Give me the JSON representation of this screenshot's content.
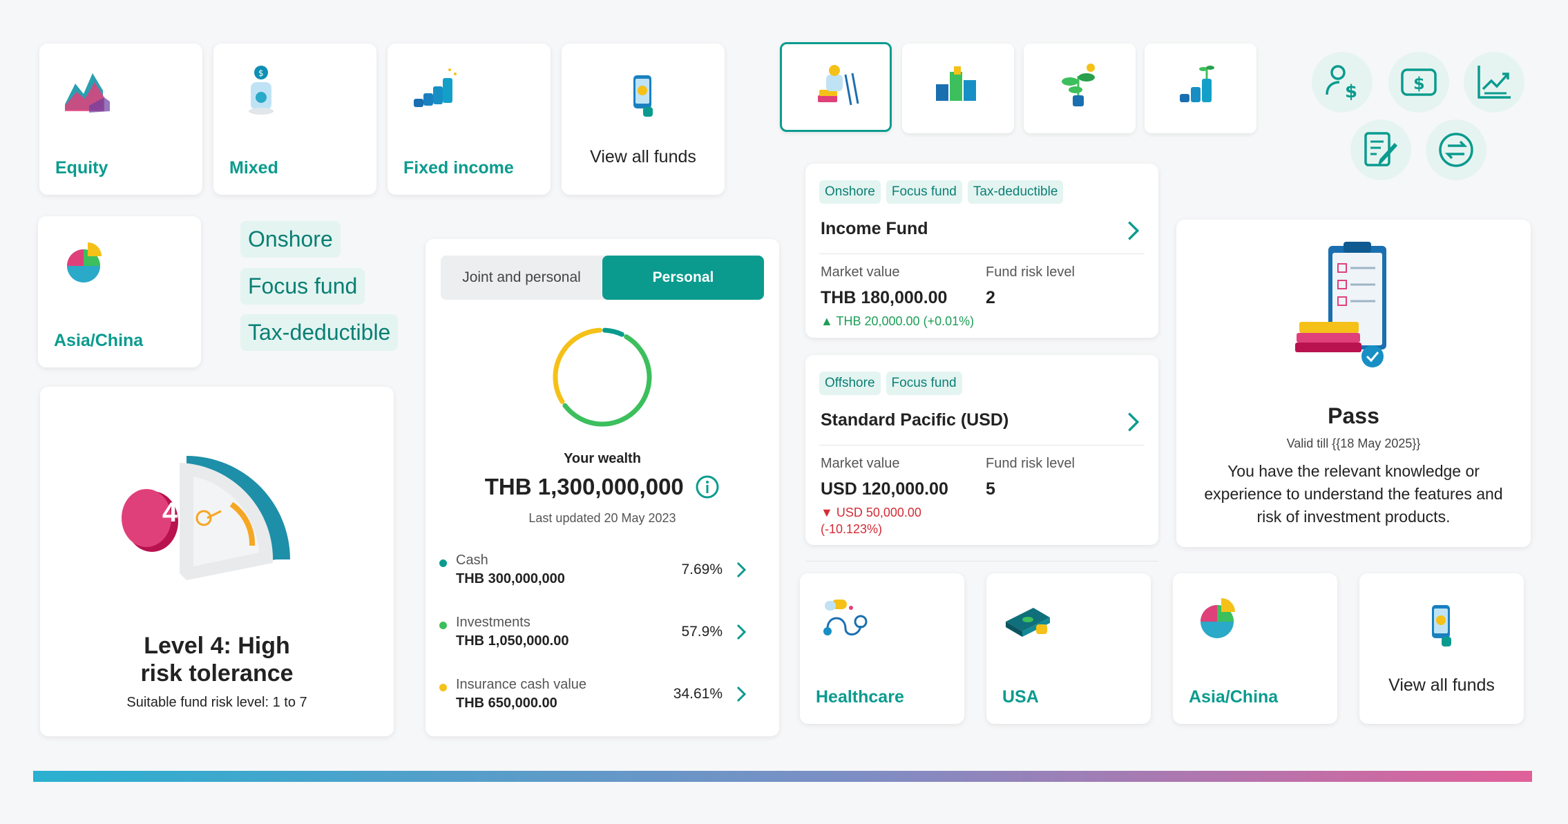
{
  "categories_top": [
    {
      "label": "Equity",
      "icon": "equity-chart-icon"
    },
    {
      "label": "Mixed",
      "icon": "mixed-coin-jar-icon"
    },
    {
      "label": "Fixed income",
      "icon": "fixed-income-coins-icon"
    }
  ],
  "view_all_top": {
    "label": "View all funds",
    "icon": "phone-coin-icon"
  },
  "category_asia": {
    "label": "Asia/China",
    "icon": "asia-pie-icon"
  },
  "chips": [
    "Onshore",
    "Focus fund",
    "Tax-deductible"
  ],
  "risk_card": {
    "level_number": "4",
    "title": "Level 4: High risk tolerance",
    "subtitle": "Suitable fund risk level: 1 to 7"
  },
  "wealth": {
    "toggle": [
      "Joint and personal",
      "Personal"
    ],
    "toggle_selected": 1,
    "title": "Your wealth",
    "amount": "THB 1,300,000,000",
    "updated": "Last updated 20 May 2023",
    "rows": [
      {
        "name": "Cash",
        "value": "THB 300,000,000",
        "pct": "7.69%",
        "color": "#0a9b8e",
        "share": 7.69
      },
      {
        "name": "Investments",
        "value": "THB 1,050,000.00",
        "pct": "57.9%",
        "color": "#3cbf5c",
        "share": 57.9
      },
      {
        "name": "Insurance cash value",
        "value": "THB 650,000.00",
        "pct": "34.61%",
        "color": "#f5c118",
        "share": 34.61
      }
    ]
  },
  "fund_cards": [
    {
      "tags": [
        "Onshore",
        "Focus fund",
        "Tax-deductible"
      ],
      "name": "Income Fund",
      "mv_label": "Market value",
      "mv": "THB 180,000.00",
      "risk_label": "Fund risk level",
      "risk": "2",
      "change": "▲ THB 20,000.00 (+0.01%)",
      "change_dir": "up"
    },
    {
      "tags": [
        "Offshore",
        "Focus fund"
      ],
      "name": "Standard Pacific (USD)",
      "mv_label": "Market value",
      "mv": "USD 120,000.00",
      "risk_label": "Fund risk level",
      "risk": "5",
      "change_line1": "▼ USD 50,000.00",
      "change_line2": "(-10.123%)",
      "change_dir": "down"
    }
  ],
  "thumbs": [
    "coin-ladder-icon",
    "coin-stacks-icon",
    "money-plant-icon",
    "growing-coins-icon"
  ],
  "quick_icons": [
    "user-dollar-icon",
    "dollar-bill-icon",
    "trend-chart-icon",
    "document-edit-icon",
    "exchange-icon"
  ],
  "pass_card": {
    "title": "Pass",
    "valid": "Valid till {{18 May 2025}}",
    "description": "You have the relevant knowledge or experience to understand the features and risk of investment products."
  },
  "categories_bottom": [
    {
      "label": "Healthcare",
      "icon": "healthcare-pills-icon"
    },
    {
      "label": "USA",
      "icon": "usa-money-icon"
    },
    {
      "label": "Asia/China",
      "icon": "asia-pie-icon"
    }
  ],
  "view_all_bottom": {
    "label": "View all funds",
    "icon": "phone-coin-icon"
  },
  "colors": {
    "accent": "#0a9b8e",
    "up": "#1c9e56",
    "down": "#d42b35",
    "gradient_start": "#2ab0d0",
    "gradient_end": "#e0609a"
  }
}
